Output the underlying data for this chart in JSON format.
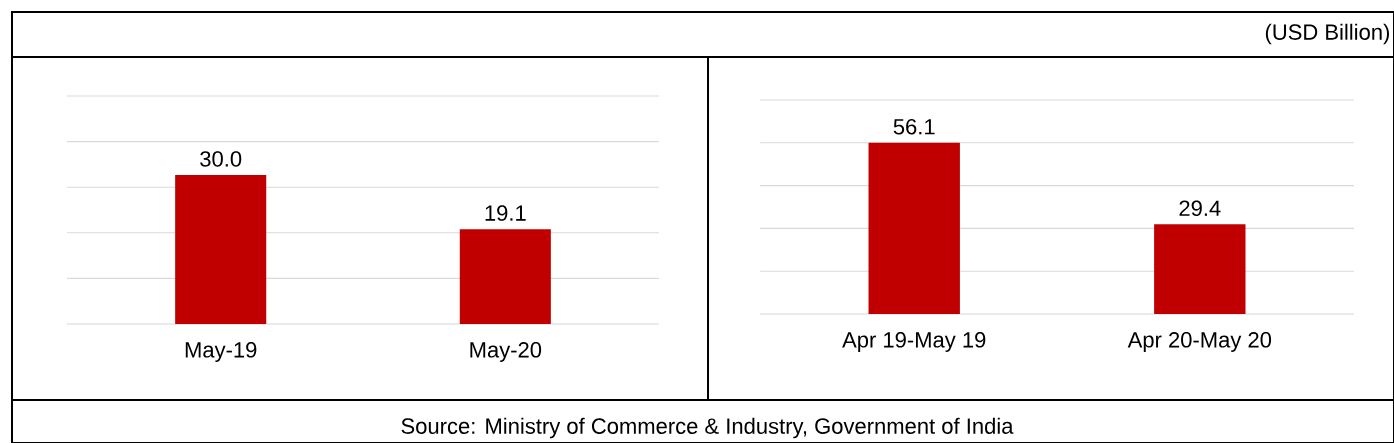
{
  "chart_data": [
    {
      "type": "bar",
      "categories": [
        "May-19",
        "May-20"
      ],
      "values": [
        30.0,
        19.1
      ],
      "value_labels": [
        "30.0",
        "19.1"
      ],
      "color": "#c00000",
      "grid": "y",
      "tick_labels": "x",
      "annotations": [
        "(USD Billion)",
        "Source: Ministry of Commerce & Industry, Government of India"
      ]
    },
    {
      "type": "bar",
      "categories": [
        "Apr 19-May 19",
        "Apr 20-May 20"
      ],
      "values": [
        56.1,
        29.4
      ],
      "color": "#c00000",
      "data_labels": true,
      "grid": "y",
      "tick_labels": "x"
    }
  ]
}
